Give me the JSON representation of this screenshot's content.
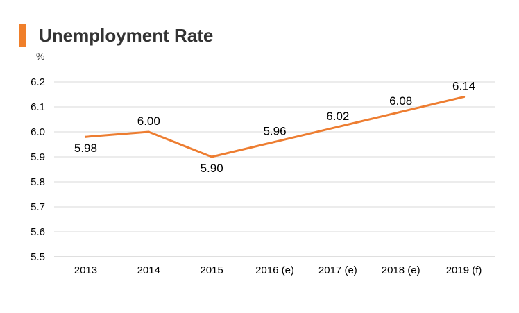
{
  "colors": {
    "accent": "#f07f2a",
    "grid": "#d9d9d9",
    "line": "#ed7d31"
  },
  "chart_data": {
    "type": "line",
    "title": "Unemployment Rate",
    "ylabel": "%",
    "xlabel": "",
    "categories": [
      "2013",
      "2014",
      "2015",
      "2016 (e)",
      "2017 (e)",
      "2018 (e)",
      "2019 (f)"
    ],
    "series": [
      {
        "values": [
          5.98,
          6.0,
          5.9,
          5.96,
          6.02,
          6.08,
          6.14
        ]
      }
    ],
    "data_labels": [
      "5.98",
      "6.00",
      "5.90",
      "5.96",
      "6.02",
      "6.08",
      "6.14"
    ],
    "ylim": [
      5.5,
      6.2
    ],
    "yticks": [
      "5.5",
      "5.6",
      "5.7",
      "5.8",
      "5.9",
      "6.0",
      "6.1",
      "6.2"
    ],
    "grid": true,
    "legend": "none"
  }
}
